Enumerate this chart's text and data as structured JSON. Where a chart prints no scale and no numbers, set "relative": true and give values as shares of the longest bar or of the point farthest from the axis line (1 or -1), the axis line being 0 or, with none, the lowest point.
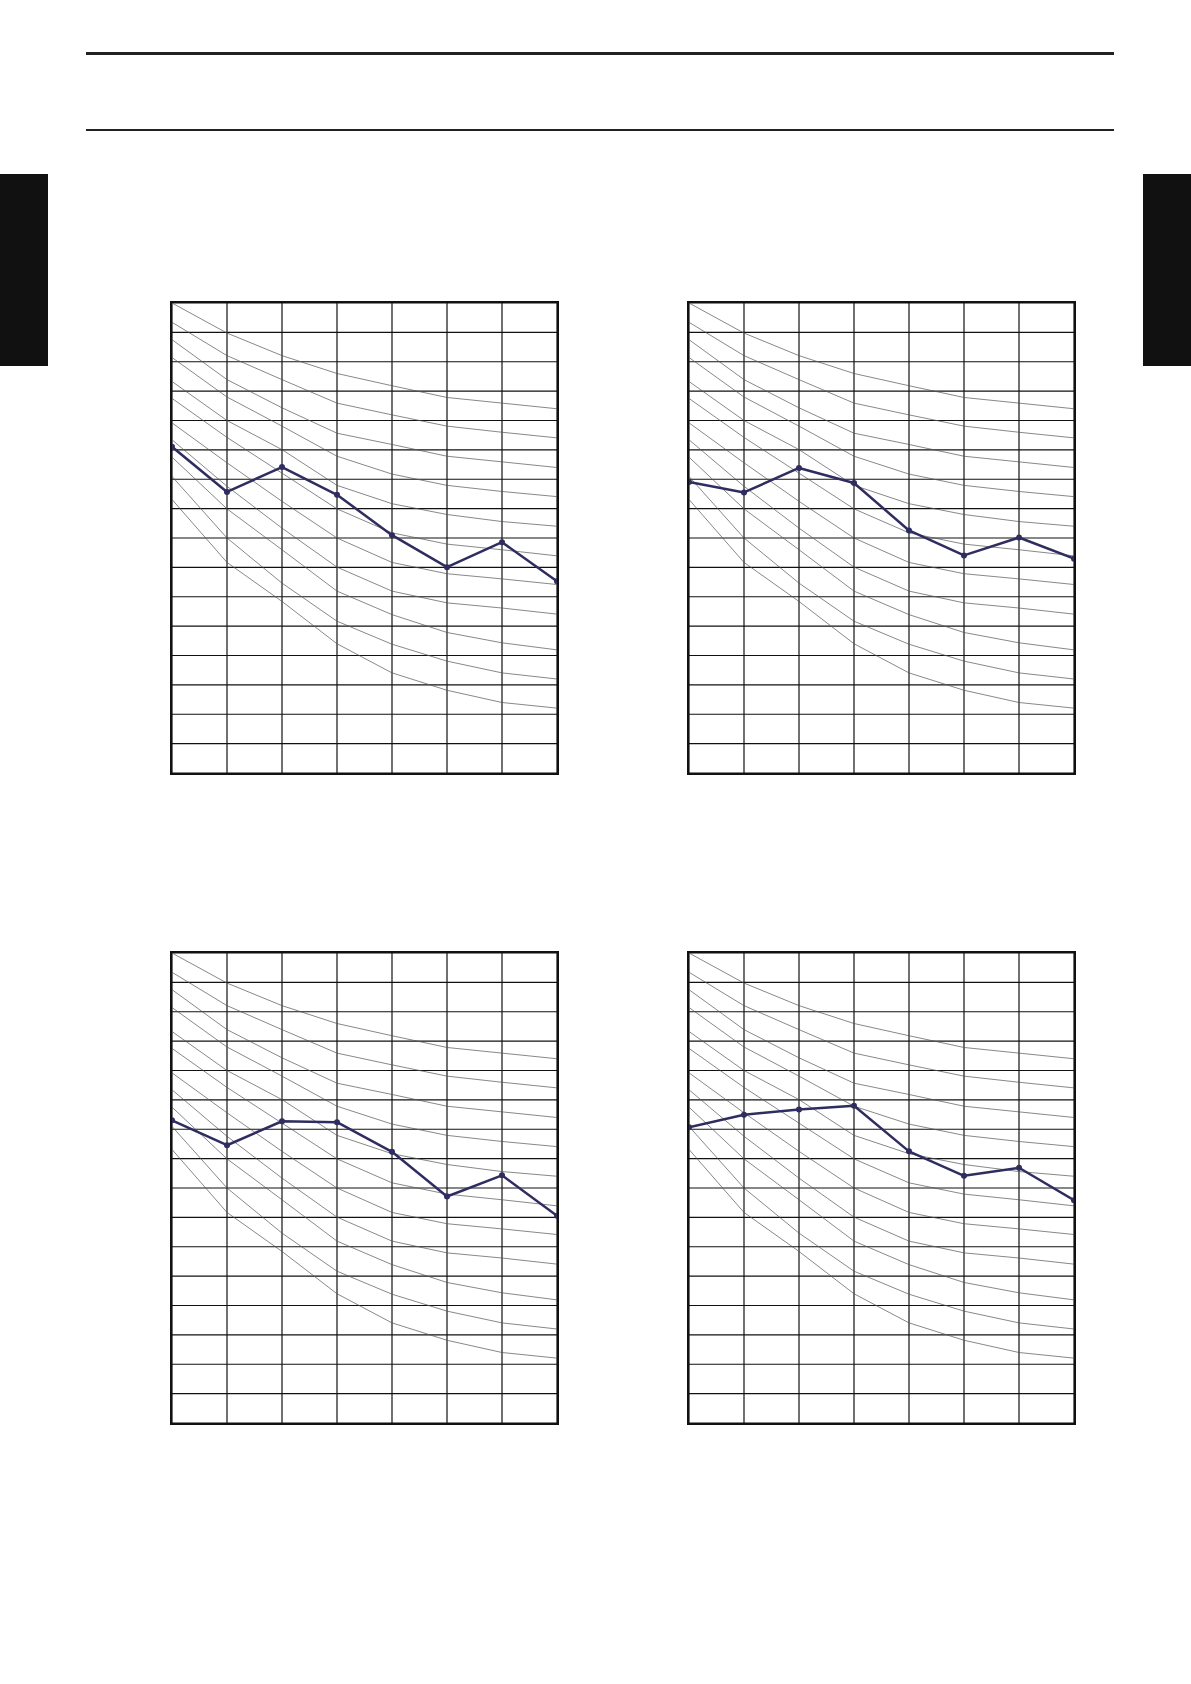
{
  "chart_data": [
    {
      "type": "line",
      "relative": true,
      "grid": true,
      "tick_labels": false,
      "categories": [
        null,
        null,
        null,
        null,
        null,
        null,
        null,
        null
      ],
      "series": [
        {
          "color": "#555555",
          "marker": "none",
          "values": [
            1.0,
            0.936,
            0.888,
            0.85,
            0.824,
            0.799,
            0.787,
            0.775
          ]
        },
        {
          "color": "#555555",
          "marker": "none",
          "values": [
            0.959,
            0.888,
            0.837,
            0.787,
            0.762,
            0.738,
            0.725,
            0.713
          ]
        },
        {
          "color": "#555555",
          "marker": "none",
          "values": [
            0.922,
            0.837,
            0.777,
            0.723,
            0.699,
            0.674,
            0.662,
            0.65
          ]
        },
        {
          "color": "#555555",
          "marker": "none",
          "values": [
            0.884,
            0.8,
            0.738,
            0.674,
            0.636,
            0.612,
            0.599,
            0.588
          ]
        },
        {
          "color": "#555555",
          "marker": "none",
          "values": [
            0.833,
            0.75,
            0.688,
            0.612,
            0.573,
            0.55,
            0.535,
            0.525
          ]
        },
        {
          "color": "#555555",
          "marker": "none",
          "values": [
            0.797,
            0.714,
            0.638,
            0.562,
            0.511,
            0.487,
            0.475,
            0.462
          ]
        },
        {
          "color": "#555555",
          "marker": "none",
          "values": [
            0.745,
            0.66,
            0.578,
            0.5,
            0.448,
            0.424,
            0.413,
            0.401
          ]
        },
        {
          "color": "#555555",
          "marker": "none",
          "values": [
            0.709,
            0.61,
            0.521,
            0.438,
            0.387,
            0.362,
            0.351,
            0.338
          ]
        },
        {
          "color": "#555555",
          "marker": "none",
          "values": [
            0.672,
            0.562,
            0.475,
            0.387,
            0.337,
            0.299,
            0.277,
            0.262
          ]
        },
        {
          "color": "#555555",
          "marker": "none",
          "values": [
            0.631,
            0.5,
            0.404,
            0.323,
            0.274,
            0.238,
            0.213,
            0.2
          ]
        },
        {
          "color": "#555555",
          "marker": "none",
          "values": [
            0.582,
            0.448,
            0.365,
            0.275,
            0.213,
            0.176,
            0.15,
            0.138
          ]
        },
        {
          "color": "#2f2d60",
          "marker": "circle",
          "values": [
            0.694,
            0.598,
            0.651,
            0.592,
            0.506,
            0.438,
            0.491,
            0.408
          ]
        }
      ]
    },
    {
      "type": "line",
      "relative": true,
      "grid": true,
      "tick_labels": false,
      "categories": [
        null,
        null,
        null,
        null,
        null,
        null,
        null,
        null
      ],
      "series": [
        {
          "color": "#555555",
          "marker": "none",
          "values": [
            1.0,
            0.936,
            0.888,
            0.85,
            0.824,
            0.799,
            0.787,
            0.775
          ]
        },
        {
          "color": "#555555",
          "marker": "none",
          "values": [
            0.959,
            0.888,
            0.837,
            0.787,
            0.762,
            0.738,
            0.725,
            0.713
          ]
        },
        {
          "color": "#555555",
          "marker": "none",
          "values": [
            0.922,
            0.837,
            0.777,
            0.723,
            0.699,
            0.674,
            0.662,
            0.65
          ]
        },
        {
          "color": "#555555",
          "marker": "none",
          "values": [
            0.884,
            0.8,
            0.738,
            0.674,
            0.636,
            0.612,
            0.599,
            0.588
          ]
        },
        {
          "color": "#555555",
          "marker": "none",
          "values": [
            0.833,
            0.75,
            0.688,
            0.612,
            0.573,
            0.55,
            0.535,
            0.525
          ]
        },
        {
          "color": "#555555",
          "marker": "none",
          "values": [
            0.797,
            0.714,
            0.638,
            0.562,
            0.511,
            0.487,
            0.475,
            0.462
          ]
        },
        {
          "color": "#555555",
          "marker": "none",
          "values": [
            0.745,
            0.66,
            0.578,
            0.5,
            0.448,
            0.424,
            0.413,
            0.401
          ]
        },
        {
          "color": "#555555",
          "marker": "none",
          "values": [
            0.709,
            0.61,
            0.521,
            0.438,
            0.387,
            0.362,
            0.351,
            0.338
          ]
        },
        {
          "color": "#555555",
          "marker": "none",
          "values": [
            0.672,
            0.562,
            0.475,
            0.387,
            0.337,
            0.299,
            0.277,
            0.262
          ]
        },
        {
          "color": "#555555",
          "marker": "none",
          "values": [
            0.631,
            0.5,
            0.404,
            0.323,
            0.274,
            0.238,
            0.213,
            0.2
          ]
        },
        {
          "color": "#555555",
          "marker": "none",
          "values": [
            0.582,
            0.448,
            0.365,
            0.275,
            0.213,
            0.176,
            0.15,
            0.138
          ]
        },
        {
          "color": "#2f2d60",
          "marker": "circle",
          "values": [
            0.619,
            0.597,
            0.649,
            0.617,
            0.516,
            0.463,
            0.501,
            0.456
          ]
        }
      ]
    },
    {
      "type": "line",
      "relative": true,
      "grid": true,
      "tick_labels": false,
      "categories": [
        null,
        null,
        null,
        null,
        null,
        null,
        null,
        null
      ],
      "series": [
        {
          "color": "#555555",
          "marker": "none",
          "values": [
            1.0,
            0.936,
            0.888,
            0.85,
            0.824,
            0.799,
            0.787,
            0.775
          ]
        },
        {
          "color": "#555555",
          "marker": "none",
          "values": [
            0.959,
            0.888,
            0.837,
            0.787,
            0.762,
            0.738,
            0.725,
            0.713
          ]
        },
        {
          "color": "#555555",
          "marker": "none",
          "values": [
            0.922,
            0.837,
            0.777,
            0.723,
            0.699,
            0.674,
            0.662,
            0.65
          ]
        },
        {
          "color": "#555555",
          "marker": "none",
          "values": [
            0.884,
            0.8,
            0.738,
            0.674,
            0.636,
            0.612,
            0.599,
            0.588
          ]
        },
        {
          "color": "#555555",
          "marker": "none",
          "values": [
            0.833,
            0.75,
            0.688,
            0.612,
            0.573,
            0.55,
            0.535,
            0.525
          ]
        },
        {
          "color": "#555555",
          "marker": "none",
          "values": [
            0.797,
            0.714,
            0.638,
            0.562,
            0.511,
            0.487,
            0.475,
            0.462
          ]
        },
        {
          "color": "#555555",
          "marker": "none",
          "values": [
            0.745,
            0.66,
            0.578,
            0.5,
            0.448,
            0.424,
            0.413,
            0.401
          ]
        },
        {
          "color": "#555555",
          "marker": "none",
          "values": [
            0.709,
            0.61,
            0.521,
            0.438,
            0.387,
            0.362,
            0.351,
            0.338
          ]
        },
        {
          "color": "#555555",
          "marker": "none",
          "values": [
            0.672,
            0.562,
            0.475,
            0.387,
            0.337,
            0.299,
            0.277,
            0.262
          ]
        },
        {
          "color": "#555555",
          "marker": "none",
          "values": [
            0.631,
            0.5,
            0.404,
            0.323,
            0.274,
            0.238,
            0.213,
            0.2
          ]
        },
        {
          "color": "#555555",
          "marker": "none",
          "values": [
            0.582,
            0.448,
            0.365,
            0.275,
            0.213,
            0.176,
            0.15,
            0.138
          ]
        },
        {
          "color": "#2f2d60",
          "marker": "circle",
          "values": [
            0.644,
            0.591,
            0.642,
            0.64,
            0.577,
            0.482,
            0.527,
            0.441
          ]
        }
      ]
    },
    {
      "type": "line",
      "relative": true,
      "grid": true,
      "tick_labels": false,
      "categories": [
        null,
        null,
        null,
        null,
        null,
        null,
        null,
        null
      ],
      "series": [
        {
          "color": "#555555",
          "marker": "none",
          "values": [
            1.0,
            0.936,
            0.888,
            0.85,
            0.824,
            0.799,
            0.787,
            0.775
          ]
        },
        {
          "color": "#555555",
          "marker": "none",
          "values": [
            0.959,
            0.888,
            0.837,
            0.787,
            0.762,
            0.738,
            0.725,
            0.713
          ]
        },
        {
          "color": "#555555",
          "marker": "none",
          "values": [
            0.922,
            0.837,
            0.777,
            0.723,
            0.699,
            0.674,
            0.662,
            0.65
          ]
        },
        {
          "color": "#555555",
          "marker": "none",
          "values": [
            0.884,
            0.8,
            0.738,
            0.674,
            0.636,
            0.612,
            0.599,
            0.588
          ]
        },
        {
          "color": "#555555",
          "marker": "none",
          "values": [
            0.833,
            0.75,
            0.688,
            0.612,
            0.573,
            0.55,
            0.535,
            0.525
          ]
        },
        {
          "color": "#555555",
          "marker": "none",
          "values": [
            0.797,
            0.714,
            0.638,
            0.562,
            0.511,
            0.487,
            0.475,
            0.462
          ]
        },
        {
          "color": "#555555",
          "marker": "none",
          "values": [
            0.745,
            0.66,
            0.578,
            0.5,
            0.448,
            0.424,
            0.413,
            0.401
          ]
        },
        {
          "color": "#555555",
          "marker": "none",
          "values": [
            0.709,
            0.61,
            0.521,
            0.438,
            0.387,
            0.362,
            0.351,
            0.338
          ]
        },
        {
          "color": "#555555",
          "marker": "none",
          "values": [
            0.672,
            0.562,
            0.475,
            0.387,
            0.337,
            0.299,
            0.277,
            0.262
          ]
        },
        {
          "color": "#555555",
          "marker": "none",
          "values": [
            0.631,
            0.5,
            0.404,
            0.323,
            0.274,
            0.238,
            0.213,
            0.2
          ]
        },
        {
          "color": "#555555",
          "marker": "none",
          "values": [
            0.582,
            0.448,
            0.365,
            0.275,
            0.213,
            0.176,
            0.15,
            0.138
          ]
        },
        {
          "color": "#2f2d60",
          "marker": "circle",
          "values": [
            0.629,
            0.656,
            0.667,
            0.675,
            0.578,
            0.526,
            0.543,
            0.474
          ]
        }
      ]
    }
  ]
}
